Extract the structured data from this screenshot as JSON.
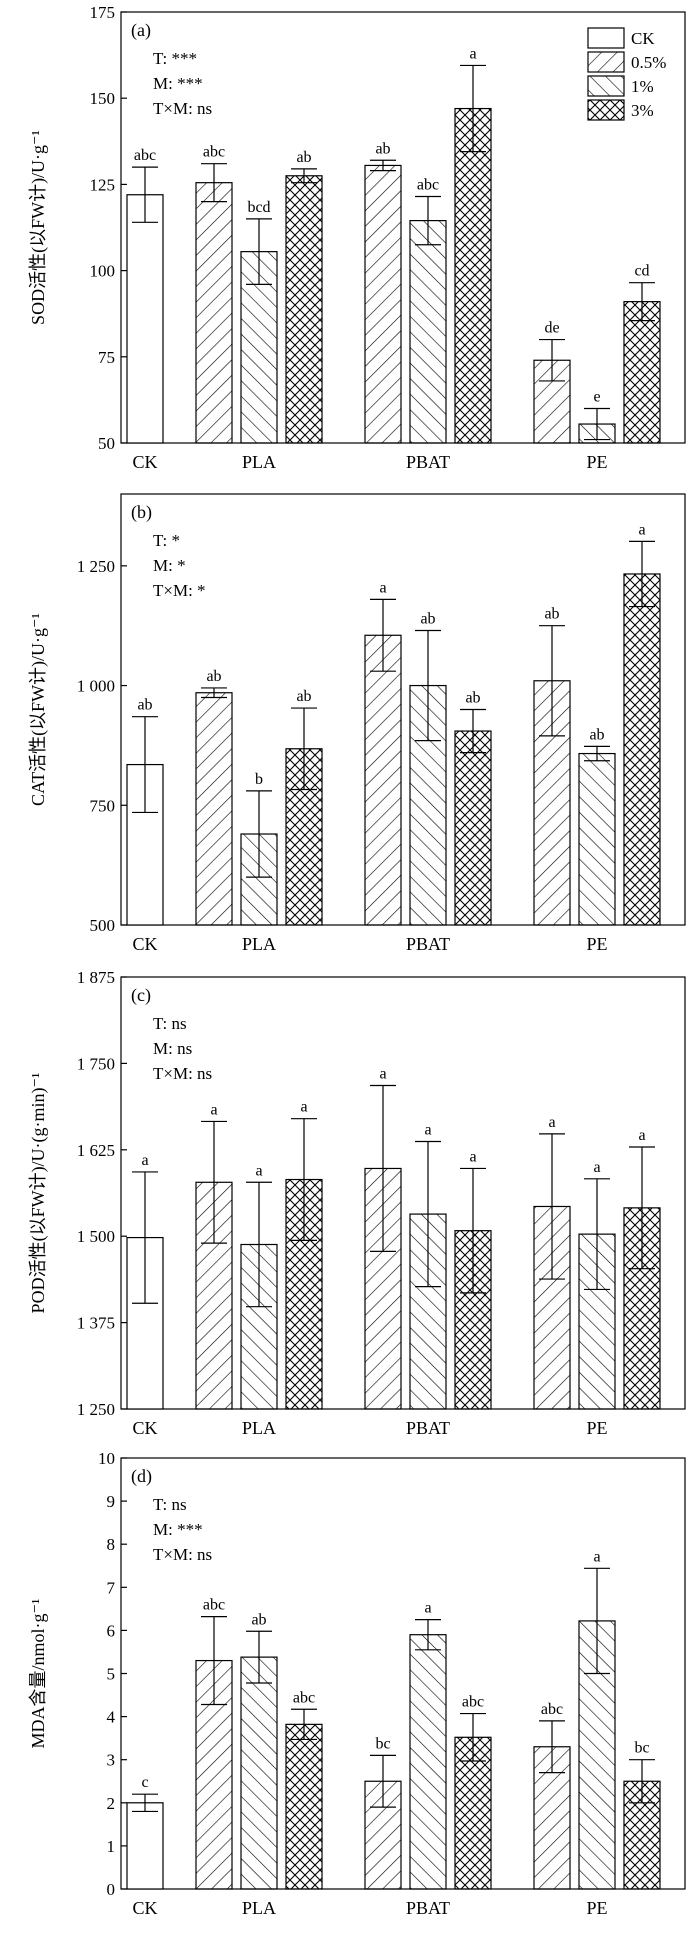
{
  "legend": [
    {
      "label": "CK",
      "pattern": "none"
    },
    {
      "label": "0.5%",
      "pattern": "fwd"
    },
    {
      "label": "1%",
      "pattern": "back"
    },
    {
      "label": "3%",
      "pattern": "cross"
    }
  ],
  "chart_data": [
    {
      "type": "bar",
      "panel_label": "(a)",
      "ylabel": "SOD活性(以FW计)/U·g⁻¹",
      "ylim": [
        50,
        175
      ],
      "yticks": [
        50,
        75,
        100,
        125,
        150,
        175
      ],
      "ytick_labels": [
        "50",
        "75",
        "100",
        "125",
        "150",
        "175"
      ],
      "stats": [
        "T: ***",
        "M: ***",
        "T×M: ns"
      ],
      "groups": [
        "CK",
        "PLA",
        "PBAT",
        "PE"
      ],
      "bars": [
        {
          "group": "CK",
          "series": "CK",
          "value": 122,
          "err": 8,
          "sig": "abc"
        },
        {
          "group": "PLA",
          "series": "0.5%",
          "value": 125.5,
          "err": 5.5,
          "sig": "abc"
        },
        {
          "group": "PLA",
          "series": "1%",
          "value": 105.5,
          "err": 9.5,
          "sig": "bcd"
        },
        {
          "group": "PLA",
          "series": "3%",
          "value": 127.5,
          "err": 2,
          "sig": "ab"
        },
        {
          "group": "PBAT",
          "series": "0.5%",
          "value": 130.5,
          "err": 1.5,
          "sig": "ab"
        },
        {
          "group": "PBAT",
          "series": "1%",
          "value": 114.5,
          "err": 7,
          "sig": "abc"
        },
        {
          "group": "PBAT",
          "series": "3%",
          "value": 147,
          "err": 12.5,
          "sig": "a"
        },
        {
          "group": "PE",
          "series": "0.5%",
          "value": 74,
          "err": 6,
          "sig": "de"
        },
        {
          "group": "PE",
          "series": "1%",
          "value": 55.5,
          "err": 4.5,
          "sig": "e"
        },
        {
          "group": "PE",
          "series": "3%",
          "value": 91,
          "err": 5.5,
          "sig": "cd"
        }
      ]
    },
    {
      "type": "bar",
      "panel_label": "(b)",
      "ylabel": "CAT活性(以FW计)/U·g⁻¹",
      "ylim": [
        500,
        1400
      ],
      "yticks": [
        500,
        750,
        1000,
        1250
      ],
      "ytick_labels": [
        "500",
        "750",
        "1 000",
        "1 250"
      ],
      "stats": [
        "T: *",
        "M: *",
        "T×M: *"
      ],
      "groups": [
        "CK",
        "PLA",
        "PBAT",
        "PE"
      ],
      "bars": [
        {
          "group": "CK",
          "series": "CK",
          "value": 835,
          "err": 100,
          "sig": "ab"
        },
        {
          "group": "PLA",
          "series": "0.5%",
          "value": 985,
          "err": 10,
          "sig": "ab"
        },
        {
          "group": "PLA",
          "series": "1%",
          "value": 690,
          "err": 90,
          "sig": "b"
        },
        {
          "group": "PLA",
          "series": "3%",
          "value": 868,
          "err": 85,
          "sig": "ab"
        },
        {
          "group": "PBAT",
          "series": "0.5%",
          "value": 1105,
          "err": 75,
          "sig": "a"
        },
        {
          "group": "PBAT",
          "series": "1%",
          "value": 1000,
          "err": 115,
          "sig": "ab"
        },
        {
          "group": "PBAT",
          "series": "3%",
          "value": 905,
          "err": 45,
          "sig": "ab"
        },
        {
          "group": "PE",
          "series": "0.5%",
          "value": 1010,
          "err": 115,
          "sig": "ab"
        },
        {
          "group": "PE",
          "series": "1%",
          "value": 858,
          "err": 15,
          "sig": "ab"
        },
        {
          "group": "PE",
          "series": "3%",
          "value": 1233,
          "err": 68,
          "sig": "a"
        }
      ]
    },
    {
      "type": "bar",
      "panel_label": "(c)",
      "ylabel": "POD活性(以FW计)/U·(g·min)⁻¹",
      "ylim": [
        1250,
        1875
      ],
      "yticks": [
        1250,
        1375,
        1500,
        1625,
        1750,
        1875
      ],
      "ytick_labels": [
        "1 250",
        "1 375",
        "1 500",
        "1 625",
        "1 750",
        "1 875"
      ],
      "stats": [
        "T: ns",
        "M: ns",
        "T×M: ns"
      ],
      "groups": [
        "CK",
        "PLA",
        "PBAT",
        "PE"
      ],
      "bars": [
        {
          "group": "CK",
          "series": "CK",
          "value": 1498,
          "err": 95,
          "sig": "a"
        },
        {
          "group": "PLA",
          "series": "0.5%",
          "value": 1578,
          "err": 88,
          "sig": "a"
        },
        {
          "group": "PLA",
          "series": "1%",
          "value": 1488,
          "err": 90,
          "sig": "a"
        },
        {
          "group": "PLA",
          "series": "3%",
          "value": 1582,
          "err": 88,
          "sig": "a"
        },
        {
          "group": "PBAT",
          "series": "0.5%",
          "value": 1598,
          "err": 120,
          "sig": "a"
        },
        {
          "group": "PBAT",
          "series": "1%",
          "value": 1532,
          "err": 105,
          "sig": "a"
        },
        {
          "group": "PBAT",
          "series": "3%",
          "value": 1508,
          "err": 90,
          "sig": "a"
        },
        {
          "group": "PE",
          "series": "0.5%",
          "value": 1543,
          "err": 105,
          "sig": "a"
        },
        {
          "group": "PE",
          "series": "1%",
          "value": 1503,
          "err": 80,
          "sig": "a"
        },
        {
          "group": "PE",
          "series": "3%",
          "value": 1541,
          "err": 88,
          "sig": "a"
        }
      ]
    },
    {
      "type": "bar",
      "panel_label": "(d)",
      "ylabel": "MDA含量/nmol·g⁻¹",
      "ylim": [
        0,
        10
      ],
      "yticks": [
        0,
        1,
        2,
        3,
        4,
        5,
        6,
        7,
        8,
        9,
        10
      ],
      "ytick_labels": [
        "0",
        "1",
        "2",
        "3",
        "4",
        "5",
        "6",
        "7",
        "8",
        "9",
        "10"
      ],
      "stats": [
        "T: ns",
        "M: ***",
        "T×M: ns"
      ],
      "groups": [
        "CK",
        "PLA",
        "PBAT",
        "PE"
      ],
      "bars": [
        {
          "group": "CK",
          "series": "CK",
          "value": 2.0,
          "err": 0.2,
          "sig": "c"
        },
        {
          "group": "PLA",
          "series": "0.5%",
          "value": 5.3,
          "err": 1.02,
          "sig": "abc"
        },
        {
          "group": "PLA",
          "series": "1%",
          "value": 5.38,
          "err": 0.6,
          "sig": "ab"
        },
        {
          "group": "PLA",
          "series": "3%",
          "value": 3.82,
          "err": 0.35,
          "sig": "abc"
        },
        {
          "group": "PBAT",
          "series": "0.5%",
          "value": 2.5,
          "err": 0.6,
          "sig": "bc"
        },
        {
          "group": "PBAT",
          "series": "1%",
          "value": 5.9,
          "err": 0.35,
          "sig": "a"
        },
        {
          "group": "PBAT",
          "series": "3%",
          "value": 3.52,
          "err": 0.55,
          "sig": "abc"
        },
        {
          "group": "PE",
          "series": "0.5%",
          "value": 3.3,
          "err": 0.6,
          "sig": "abc"
        },
        {
          "group": "PE",
          "series": "1%",
          "value": 6.22,
          "err": 1.22,
          "sig": "a"
        },
        {
          "group": "PE",
          "series": "3%",
          "value": 2.5,
          "err": 0.5,
          "sig": "bc"
        }
      ]
    }
  ]
}
